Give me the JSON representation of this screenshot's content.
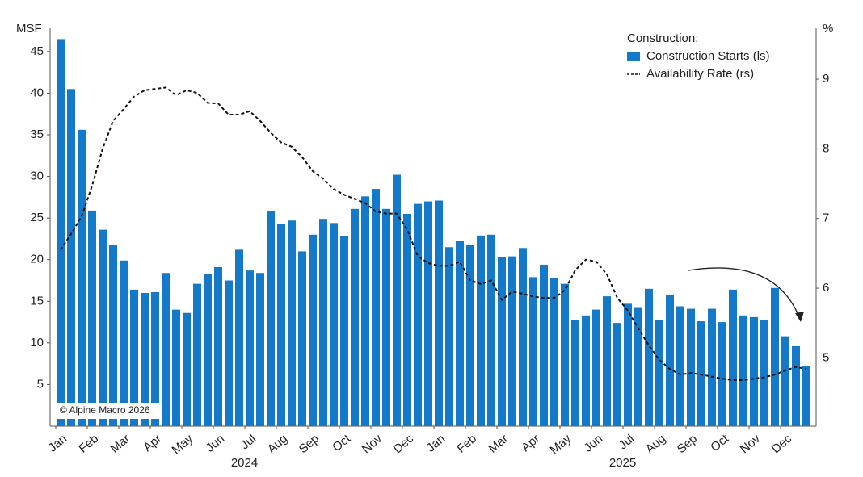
{
  "chart_data": {
    "type": "bar",
    "ylabel": "MSF",
    "y2label": "%",
    "legend": {
      "title": "Construction:",
      "position": "top-right"
    },
    "source": "© Alpine Macro 2026",
    "categories": [
      "Jan",
      null,
      null,
      "Feb",
      null,
      null,
      "Mar",
      null,
      null,
      "Apr",
      null,
      null,
      "May",
      null,
      null,
      "Jun",
      null,
      null,
      "Jul",
      null,
      null,
      "Aug",
      null,
      null,
      "Sep",
      null,
      null,
      "Oct",
      null,
      null,
      "Nov",
      null,
      null,
      "Dec",
      null,
      null,
      "Jan",
      null,
      null,
      "Feb",
      null,
      null,
      "Mar",
      null,
      null,
      "Apr",
      null,
      null,
      "May",
      null,
      null,
      "Jun",
      null,
      null,
      "Jul",
      null,
      null,
      "Aug",
      null,
      null,
      "Sep",
      null,
      null,
      "Oct",
      null,
      null,
      "Nov",
      null,
      null,
      "Dec",
      null,
      null
    ],
    "x_group_labels": [
      "2024",
      "2025"
    ],
    "series": [
      {
        "name": "Construction Starts (ls)",
        "type": "bar",
        "color": "#1479c9",
        "values": [
          46.5,
          40.5,
          35.6,
          25.9,
          23.6,
          21.8,
          19.9,
          16.4,
          16.0,
          16.1,
          18.4,
          14.0,
          13.6,
          17.1,
          18.3,
          19.1,
          17.5,
          21.2,
          18.7,
          18.4,
          25.8,
          24.3,
          24.7,
          21.0,
          23.0,
          24.9,
          24.4,
          22.8,
          26.1,
          27.6,
          28.5,
          26.1,
          30.2,
          25.5,
          26.7,
          27.0,
          27.1,
          21.5,
          22.3,
          21.8,
          22.9,
          23.0,
          20.3,
          20.4,
          21.4,
          17.9,
          19.4,
          17.8,
          17.1,
          12.7,
          13.3,
          14.0,
          15.6,
          12.4,
          14.7,
          14.3,
          16.5,
          12.8,
          15.8,
          14.4,
          14.1,
          12.6,
          14.1,
          12.5,
          16.4,
          13.3,
          13.1,
          12.8,
          16.6,
          10.8,
          9.6,
          7.2
        ]
      },
      {
        "name": "Availability Rate (rs)",
        "type": "line",
        "axis": "y2",
        "color": "#111111",
        "dashed": true,
        "values": [
          6.55,
          6.78,
          7.03,
          7.47,
          8.0,
          8.4,
          8.57,
          8.75,
          8.84,
          8.86,
          8.88,
          8.77,
          8.84,
          8.8,
          8.66,
          8.65,
          8.49,
          8.49,
          8.54,
          8.4,
          8.23,
          8.09,
          8.03,
          7.88,
          7.68,
          7.57,
          7.42,
          7.34,
          7.28,
          7.22,
          7.1,
          7.07,
          7.07,
          6.84,
          6.46,
          6.36,
          6.32,
          6.32,
          6.38,
          6.11,
          6.06,
          6.11,
          5.83,
          5.95,
          5.92,
          5.88,
          5.86,
          5.86,
          5.97,
          6.26,
          6.41,
          6.38,
          6.2,
          5.86,
          5.68,
          5.42,
          5.18,
          4.97,
          4.84,
          4.76,
          4.78,
          4.76,
          4.73,
          4.7,
          4.68,
          4.68,
          4.7,
          4.72,
          4.76,
          4.82,
          4.87,
          4.84
        ]
      }
    ],
    "ylim": [
      0,
      47.8
    ],
    "yticks": [
      5,
      10,
      15,
      20,
      25,
      30,
      35,
      40,
      45
    ],
    "y2lim": [
      4.02,
      9.73
    ],
    "y2ticks": [
      5,
      6,
      7,
      8,
      9
    ],
    "grid": false
  }
}
